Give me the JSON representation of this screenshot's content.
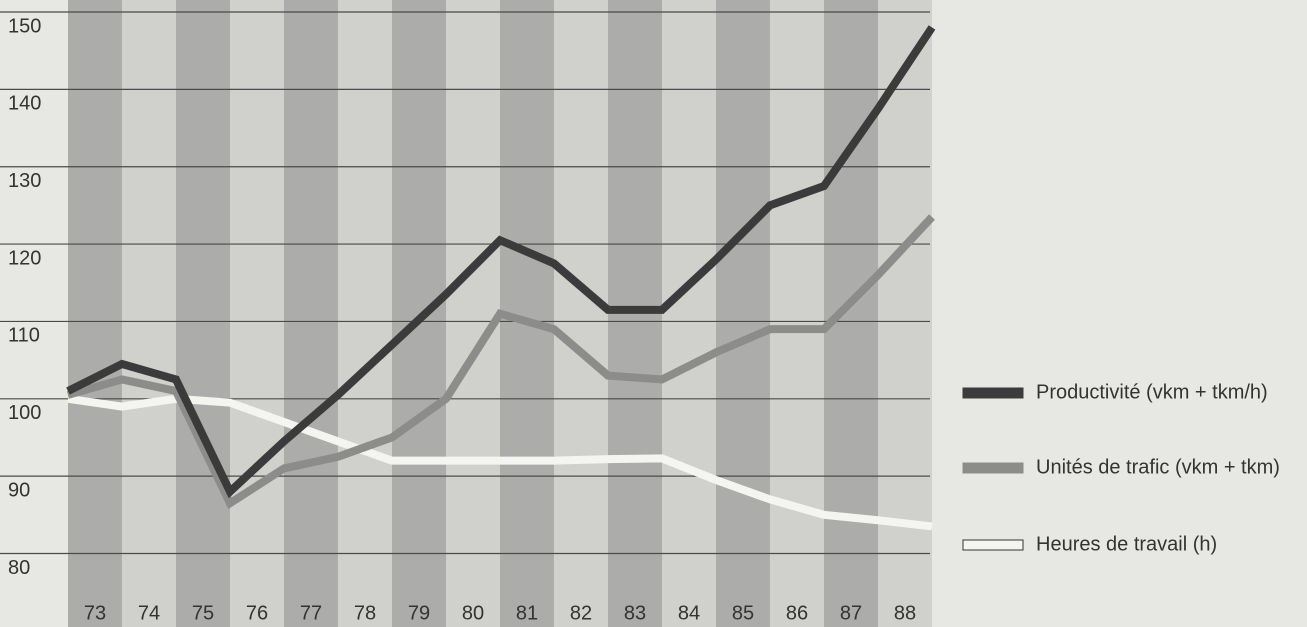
{
  "chart_data": {
    "type": "line",
    "x": [
      72.5,
      73.5,
      74.5,
      75.5,
      76.5,
      77.5,
      78.5,
      79.5,
      80.5,
      81.5,
      82.5,
      83.5,
      84.5,
      85.5,
      86.5,
      87.5,
      88.5
    ],
    "series": [
      {
        "name": "Productivité (vkm + tkm/h)",
        "color": "#3b3b3b",
        "values": [
          101,
          104.5,
          102.5,
          88,
          94.5,
          100.5,
          107,
          113.5,
          120.5,
          117.5,
          111.5,
          111.5,
          118,
          125,
          127.5,
          137.5,
          148
        ]
      },
      {
        "name": "Unités de trafic (vkm + tkm)",
        "color": "#8c8c8a",
        "values": [
          100.5,
          102.5,
          101,
          86.5,
          91,
          92.5,
          95,
          100,
          111,
          109,
          103,
          102.5,
          106,
          109,
          109,
          116,
          123.5
        ]
      },
      {
        "name": "Heures de travail (h)",
        "color": "#f4f4f1",
        "values": [
          100,
          99,
          100,
          99.5,
          97,
          94.5,
          92,
          92,
          92,
          92,
          92.2,
          92.3,
          89.5,
          87,
          85,
          84.3,
          83.5
        ]
      }
    ],
    "xlim": [
      72.5,
      88.5
    ],
    "xticks": [
      73,
      74,
      75,
      76,
      77,
      78,
      79,
      80,
      81,
      82,
      83,
      84,
      85,
      86,
      87,
      88
    ],
    "ylim": [
      70.5,
      150
    ],
    "yticks": [
      80,
      90,
      100,
      110,
      120,
      130,
      140,
      150
    ],
    "grid": true
  }
}
